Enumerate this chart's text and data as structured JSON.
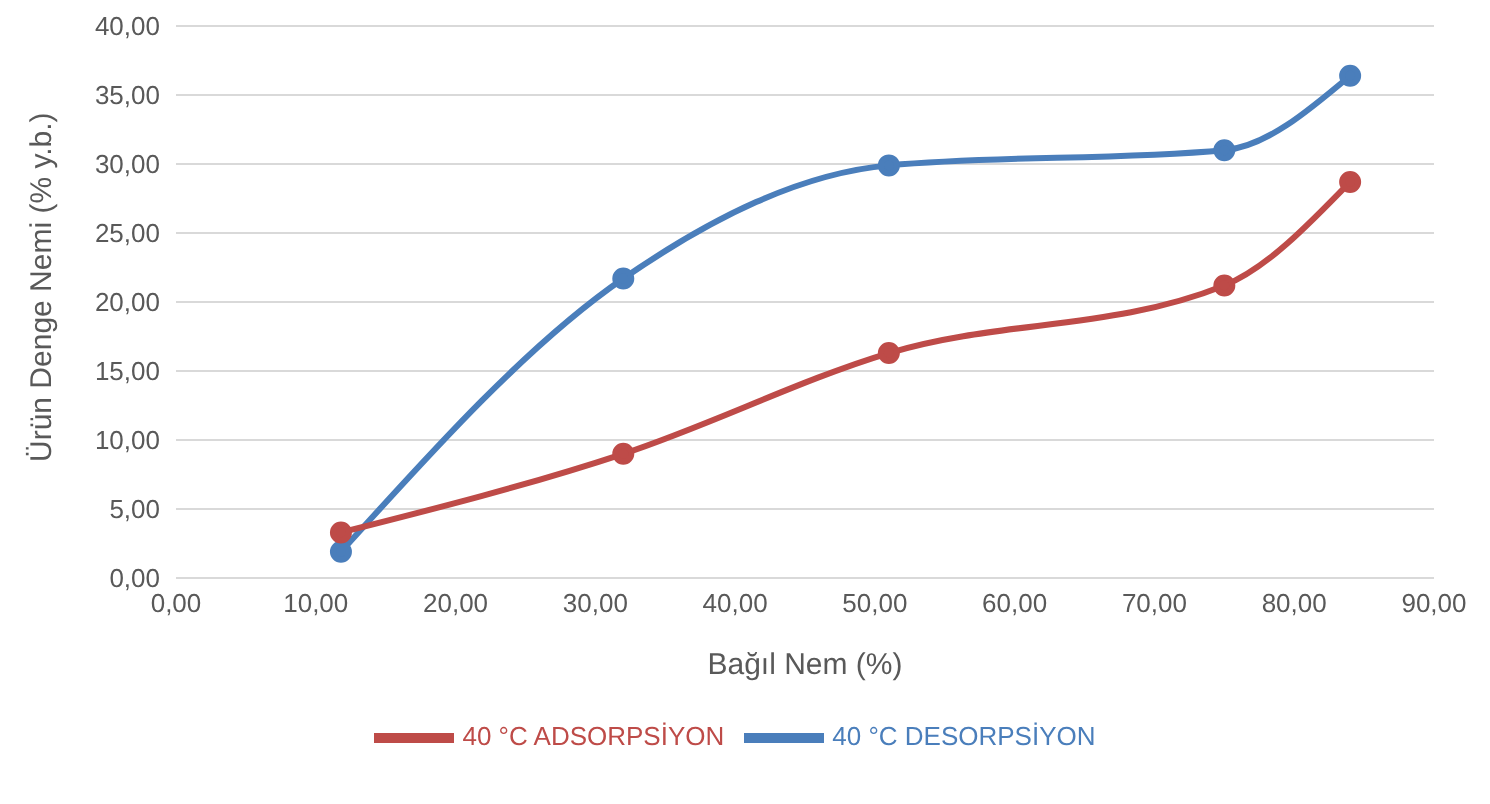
{
  "chart_data": {
    "type": "line",
    "xlabel": "Bağıl Nem (%)",
    "ylabel": "Ürün Denge Nemi (% y.b.)",
    "x": [
      11.8,
      32,
      51,
      75,
      84
    ],
    "series": [
      {
        "name": "40 °C DESORPSİYON",
        "color": "#4a7ebb",
        "values": [
          1.9,
          21.7,
          29.9,
          31.0,
          36.4
        ]
      },
      {
        "name": "40 °C ADSORPSİYON",
        "color": "#be4b48",
        "values": [
          3.3,
          9.0,
          16.3,
          21.2,
          28.7
        ]
      }
    ],
    "xlim": [
      0,
      90
    ],
    "xticks": [
      {
        "value": 0,
        "label": "0,00"
      },
      {
        "value": 10,
        "label": "10,00"
      },
      {
        "value": 20,
        "label": "20,00"
      },
      {
        "value": 30,
        "label": "30,00"
      },
      {
        "value": 40,
        "label": "40,00"
      },
      {
        "value": 50,
        "label": "50,00"
      },
      {
        "value": 60,
        "label": "60,00"
      },
      {
        "value": 70,
        "label": "70,00"
      },
      {
        "value": 80,
        "label": "80,00"
      },
      {
        "value": 90,
        "label": "90,00"
      }
    ],
    "ylim": [
      0,
      40
    ],
    "yticks": [
      {
        "value": 0,
        "label": "0,00"
      },
      {
        "value": 5,
        "label": "5,00"
      },
      {
        "value": 10,
        "label": "10,00"
      },
      {
        "value": 15,
        "label": "15,00"
      },
      {
        "value": 20,
        "label": "20,00"
      },
      {
        "value": 25,
        "label": "25,00"
      },
      {
        "value": 30,
        "label": "30,00"
      },
      {
        "value": 35,
        "label": "35,00"
      },
      {
        "value": 40,
        "label": "40,00"
      }
    ],
    "grid": "y",
    "legend": "bottom",
    "marker": "circle",
    "line_style": "solid"
  }
}
